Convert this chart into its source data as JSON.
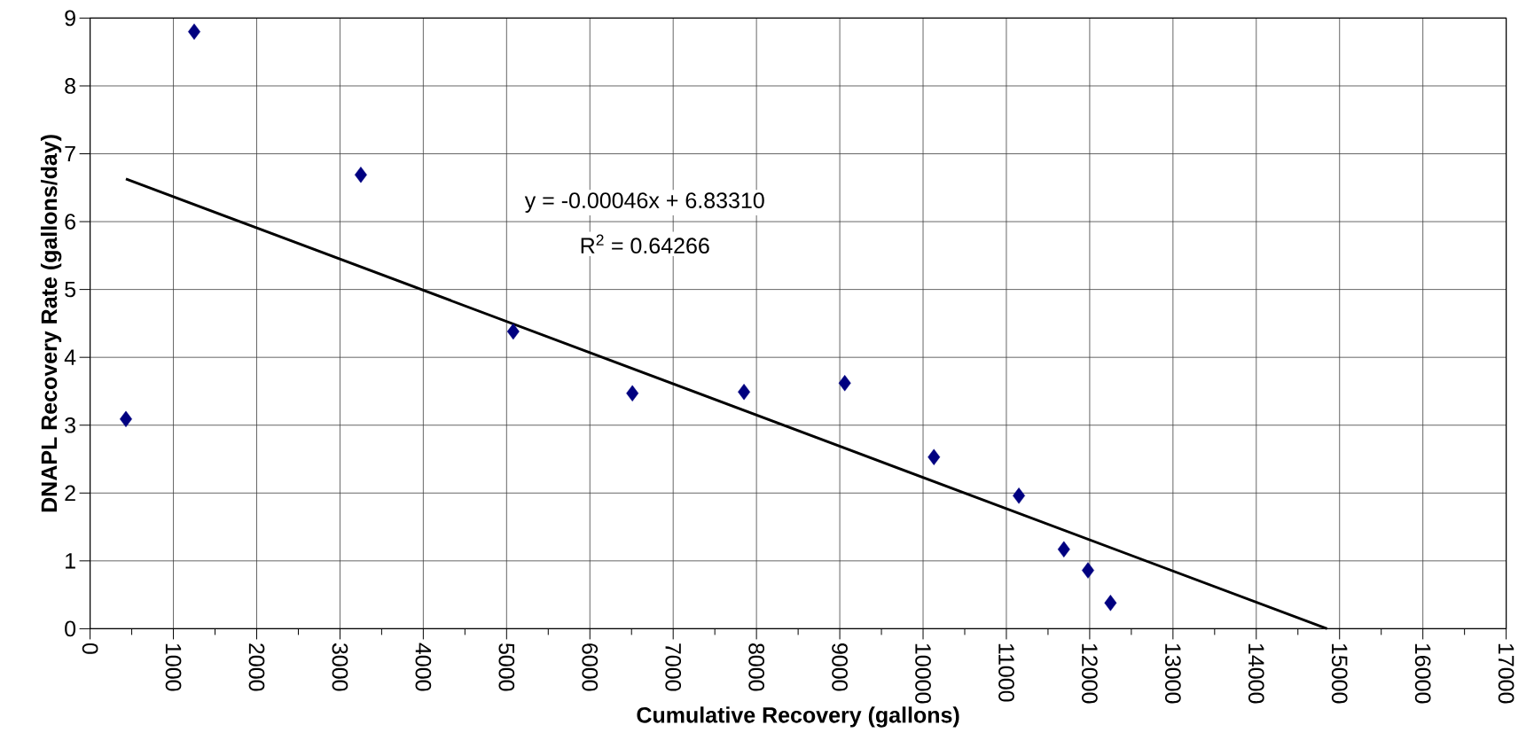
{
  "chart_data": {
    "type": "scatter",
    "xlabel": "Cumulative Recovery (gallons)",
    "ylabel": "DNAPL Recovery Rate (gallons/day)",
    "xlim": [
      0,
      17000
    ],
    "ylim": [
      0,
      9
    ],
    "xticks": [
      0,
      1000,
      2000,
      3000,
      4000,
      5000,
      6000,
      7000,
      8000,
      9000,
      10000,
      11000,
      12000,
      13000,
      14000,
      15000,
      16000,
      17000
    ],
    "yticks": [
      0,
      1,
      2,
      3,
      4,
      5,
      6,
      7,
      8,
      9
    ],
    "grid": true,
    "series": [
      {
        "color": "#000080",
        "marker": "diamond",
        "x": [
          430,
          1250,
          3250,
          5080,
          6510,
          7850,
          9060,
          10130,
          11150,
          11690,
          11980,
          12250
        ],
        "values": [
          3.09,
          8.8,
          6.69,
          4.38,
          3.47,
          3.49,
          3.62,
          2.53,
          1.96,
          1.17,
          0.86,
          0.38
        ]
      },
      {
        "type": "line",
        "color": "#000000",
        "marker": "none",
        "x": [
          430,
          14850
        ],
        "values": [
          6.63,
          0
        ]
      }
    ],
    "annotations": [
      "y = -0.00046x + 6.83310",
      "R$^{2}$ = 0.64266"
    ]
  }
}
